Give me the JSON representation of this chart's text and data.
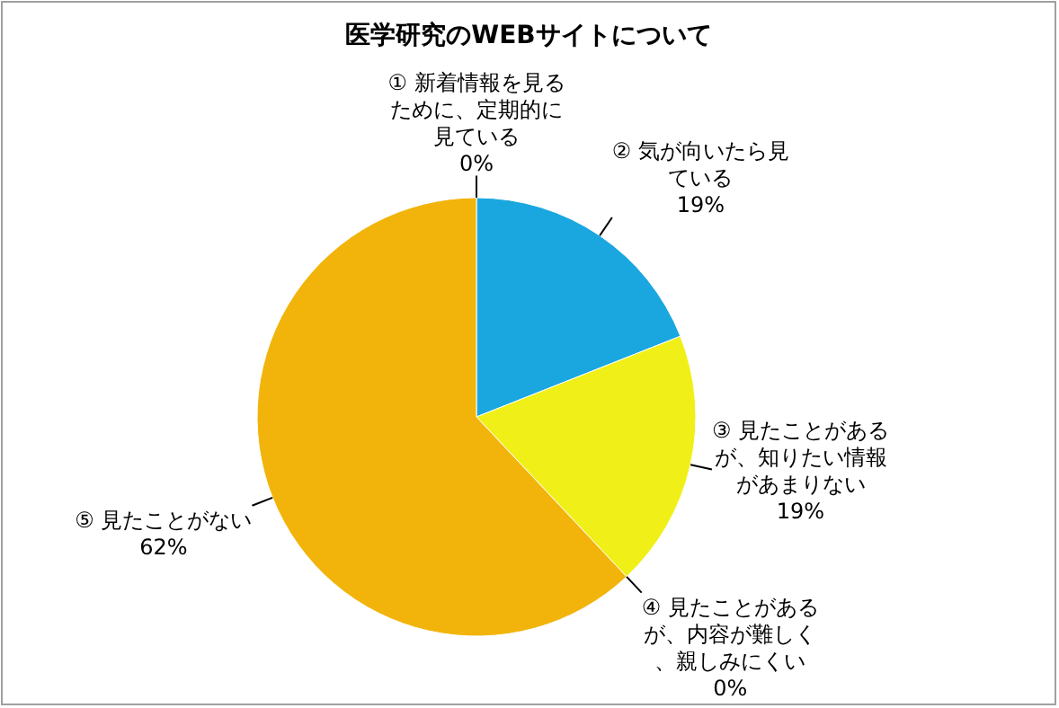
{
  "chart_data": {
    "type": "pie",
    "title": "医学研究のWEBサイトについて",
    "categories": [
      "① 新着情報を見るために、定期的に見ている",
      "② 気が向いたら見ている",
      "③ 見たことがあるが、知りたい情報があまりない",
      "④ 見たことがあるが、内容が難しく、親しみにくい",
      "⑤ 見たことがない"
    ],
    "values": [
      0,
      19,
      19,
      0,
      62
    ],
    "colors": [
      null,
      "#1aa7e0",
      "#f0f018",
      null,
      "#f2b40a"
    ],
    "value_labels": [
      "0%",
      "19%",
      "19%",
      "0%",
      "62%"
    ]
  }
}
